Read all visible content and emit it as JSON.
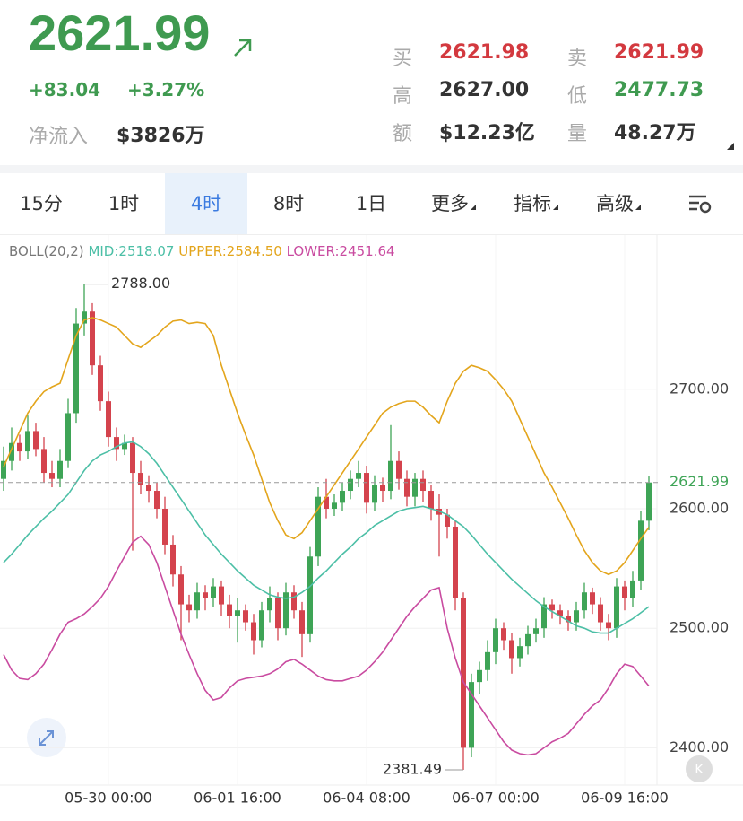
{
  "header": {
    "price": "2621.99",
    "change": "+83.04",
    "change_pct": "+3.27%",
    "net_inflow_label": "净流入",
    "net_inflow": "$3826万",
    "quote": [
      {
        "label": "买",
        "value": "2621.98",
        "tone": "red"
      },
      {
        "label": "卖",
        "value": "2621.99",
        "tone": "red"
      },
      {
        "label": "高",
        "value": "2627.00",
        "tone": "dark"
      },
      {
        "label": "低",
        "value": "2477.73",
        "tone": "green"
      },
      {
        "label": "额",
        "value": "$12.23亿",
        "tone": "dark"
      },
      {
        "label": "量",
        "value": "48.27万",
        "tone": "dark"
      }
    ]
  },
  "tabs": [
    "15分",
    "1时",
    "4时",
    "8时",
    "1日",
    "更多",
    "指标",
    "高级"
  ],
  "active_tab": 2,
  "chart_data": {
    "type": "candlestick",
    "indicator": "BOLL(20,2)",
    "categories": [
      null,
      null,
      null,
      null,
      null,
      null,
      null,
      null,
      null,
      null,
      null,
      null,
      null,
      "05-30 00:00",
      null,
      null,
      null,
      null,
      null,
      null,
      null,
      null,
      null,
      null,
      null,
      null,
      null,
      null,
      null,
      "06-01 16:00",
      null,
      null,
      null,
      null,
      null,
      null,
      null,
      null,
      null,
      null,
      null,
      null,
      null,
      null,
      null,
      "06-04 08:00",
      null,
      null,
      null,
      null,
      null,
      null,
      null,
      null,
      null,
      null,
      null,
      null,
      null,
      null,
      null,
      "06-07 00:00",
      null,
      null,
      null,
      null,
      null,
      null,
      null,
      null,
      null,
      null,
      null,
      null,
      null,
      null,
      null,
      "06-09 16:00",
      null,
      null,
      null
    ],
    "open": [
      2625,
      2640,
      2655,
      2648,
      2665,
      2650,
      2630,
      2625,
      2640,
      2680,
      2755,
      2765,
      2720,
      2690,
      2660,
      2650,
      2655,
      2630,
      2620,
      2615,
      2600,
      2570,
      2545,
      2520,
      2515,
      2530,
      2525,
      2535,
      2520,
      2510,
      2515,
      2505,
      2490,
      2515,
      2525,
      2500,
      2530,
      2515,
      2495,
      2560,
      2610,
      2600,
      2605,
      2615,
      2625,
      2630,
      2605,
      2620,
      2615,
      2640,
      2625,
      2610,
      2625,
      2615,
      2600,
      2595,
      2585,
      2525,
      2400,
      2455,
      2465,
      2480,
      2500,
      2490,
      2475,
      2485,
      2495,
      2500,
      2520,
      2515,
      2510,
      2505,
      2515,
      2530,
      2520,
      2505,
      2500,
      2535,
      2525,
      2540,
      2590
    ],
    "high": [
      2652,
      2668,
      2662,
      2678,
      2672,
      2660,
      2640,
      2650,
      2692,
      2768,
      2788,
      2772,
      2728,
      2698,
      2668,
      2662,
      2660,
      2640,
      2628,
      2622,
      2610,
      2578,
      2552,
      2528,
      2538,
      2536,
      2542,
      2540,
      2528,
      2525,
      2520,
      2512,
      2522,
      2535,
      2530,
      2538,
      2536,
      2522,
      2568,
      2618,
      2625,
      2612,
      2622,
      2632,
      2640,
      2636,
      2628,
      2626,
      2670,
      2648,
      2632,
      2630,
      2632,
      2620,
      2612,
      2600,
      2590,
      2530,
      2462,
      2472,
      2490,
      2508,
      2505,
      2496,
      2492,
      2502,
      2508,
      2526,
      2524,
      2520,
      2515,
      2522,
      2538,
      2534,
      2526,
      2512,
      2542,
      2540,
      2548,
      2598,
      2627
    ],
    "low": [
      2615,
      2632,
      2640,
      2642,
      2644,
      2622,
      2618,
      2618,
      2634,
      2672,
      2745,
      2712,
      2682,
      2652,
      2640,
      2645,
      2565,
      2612,
      2605,
      2592,
      2562,
      2535,
      2490,
      2505,
      2508,
      2515,
      2518,
      2510,
      2500,
      2488,
      2498,
      2478,
      2484,
      2505,
      2490,
      2494,
      2508,
      2476,
      2488,
      2552,
      2592,
      2594,
      2598,
      2608,
      2618,
      2596,
      2598,
      2606,
      2608,
      2616,
      2602,
      2602,
      2606,
      2590,
      2560,
      2575,
      2515,
      2381.49,
      2392,
      2445,
      2456,
      2470,
      2482,
      2462,
      2468,
      2478,
      2488,
      2492,
      2508,
      2503,
      2498,
      2498,
      2508,
      2512,
      2498,
      2490,
      2492,
      2515,
      2518,
      2532,
      2582
    ],
    "close": [
      2640,
      2655,
      2648,
      2665,
      2650,
      2630,
      2625,
      2640,
      2680,
      2755,
      2765,
      2720,
      2690,
      2660,
      2650,
      2655,
      2630,
      2620,
      2615,
      2600,
      2570,
      2545,
      2520,
      2515,
      2530,
      2525,
      2535,
      2520,
      2510,
      2515,
      2505,
      2490,
      2515,
      2525,
      2500,
      2530,
      2515,
      2495,
      2560,
      2610,
      2600,
      2605,
      2615,
      2625,
      2630,
      2605,
      2620,
      2615,
      2640,
      2625,
      2610,
      2625,
      2615,
      2600,
      2595,
      2585,
      2525,
      2400,
      2455,
      2465,
      2480,
      2500,
      2490,
      2475,
      2485,
      2495,
      2500,
      2520,
      2515,
      2510,
      2505,
      2515,
      2530,
      2520,
      2505,
      2500,
      2535,
      2525,
      2540,
      2590,
      2621.99
    ],
    "up_color": "#3ea456",
    "down_color": "#d4434d",
    "series": [
      {
        "name": "MID:2518.07",
        "color": "#4cbfa6",
        "values": [
          2555,
          2562,
          2570,
          2578,
          2585,
          2592,
          2598,
          2605,
          2612,
          2622,
          2632,
          2640,
          2645,
          2648,
          2652,
          2655,
          2656,
          2652,
          2646,
          2638,
          2628,
          2618,
          2608,
          2598,
          2588,
          2578,
          2570,
          2562,
          2555,
          2548,
          2542,
          2536,
          2532,
          2528,
          2526,
          2525,
          2526,
          2530,
          2535,
          2542,
          2548,
          2555,
          2562,
          2568,
          2575,
          2580,
          2586,
          2590,
          2594,
          2598,
          2600,
          2601,
          2602,
          2600,
          2598,
          2595,
          2590,
          2585,
          2578,
          2570,
          2562,
          2555,
          2548,
          2541,
          2535,
          2529,
          2523,
          2518,
          2514,
          2510,
          2506,
          2502,
          2500,
          2497,
          2496,
          2496,
          2500,
          2504,
          2508,
          2513,
          2518.07
        ]
      },
      {
        "name": "UPPER:2584.50",
        "color": "#e3a51c",
        "values": [
          2635,
          2650,
          2665,
          2680,
          2690,
          2698,
          2702,
          2705,
          2725,
          2745,
          2758,
          2760,
          2758,
          2755,
          2752,
          2745,
          2738,
          2735,
          2740,
          2745,
          2752,
          2757,
          2758,
          2755,
          2756,
          2755,
          2745,
          2720,
          2700,
          2680,
          2662,
          2645,
          2625,
          2605,
          2590,
          2578,
          2575,
          2580,
          2590,
          2600,
          2610,
          2620,
          2630,
          2640,
          2650,
          2660,
          2670,
          2680,
          2685,
          2688,
          2690,
          2690,
          2685,
          2678,
          2672,
          2690,
          2705,
          2715,
          2720,
          2718,
          2715,
          2708,
          2700,
          2690,
          2675,
          2660,
          2645,
          2630,
          2618,
          2605,
          2592,
          2578,
          2565,
          2555,
          2548,
          2545,
          2548,
          2555,
          2565,
          2575,
          2584.5
        ]
      },
      {
        "name": "LOWER:2451.64",
        "color": "#c94ba0",
        "values": [
          2478,
          2465,
          2458,
          2457,
          2462,
          2470,
          2482,
          2495,
          2505,
          2508,
          2512,
          2518,
          2525,
          2535,
          2548,
          2560,
          2572,
          2577,
          2570,
          2555,
          2535,
          2515,
          2495,
          2478,
          2462,
          2448,
          2440,
          2442,
          2450,
          2456,
          2458,
          2459,
          2460,
          2462,
          2466,
          2472,
          2474,
          2470,
          2465,
          2460,
          2457,
          2456,
          2456,
          2458,
          2460,
          2465,
          2472,
          2480,
          2490,
          2500,
          2510,
          2518,
          2525,
          2532,
          2534,
          2500,
          2475,
          2455,
          2445,
          2435,
          2425,
          2415,
          2405,
          2398,
          2395,
          2394,
          2395,
          2400,
          2405,
          2408,
          2412,
          2420,
          2428,
          2435,
          2440,
          2450,
          2462,
          2470,
          2468,
          2460,
          2451.64
        ]
      }
    ],
    "max_label": "2788.00",
    "min_label": "2381.49",
    "last_price": {
      "value": 2621.99,
      "label": "2621.99"
    },
    "ylim": [
      2371,
      2829
    ],
    "yticks": [
      {
        "value": 2400,
        "label": "2400.00"
      },
      {
        "value": 2500,
        "label": "2500.00"
      },
      {
        "value": 2600,
        "label": "2600.00"
      },
      {
        "value": 2700,
        "label": "2700.00"
      }
    ],
    "grid": true
  }
}
